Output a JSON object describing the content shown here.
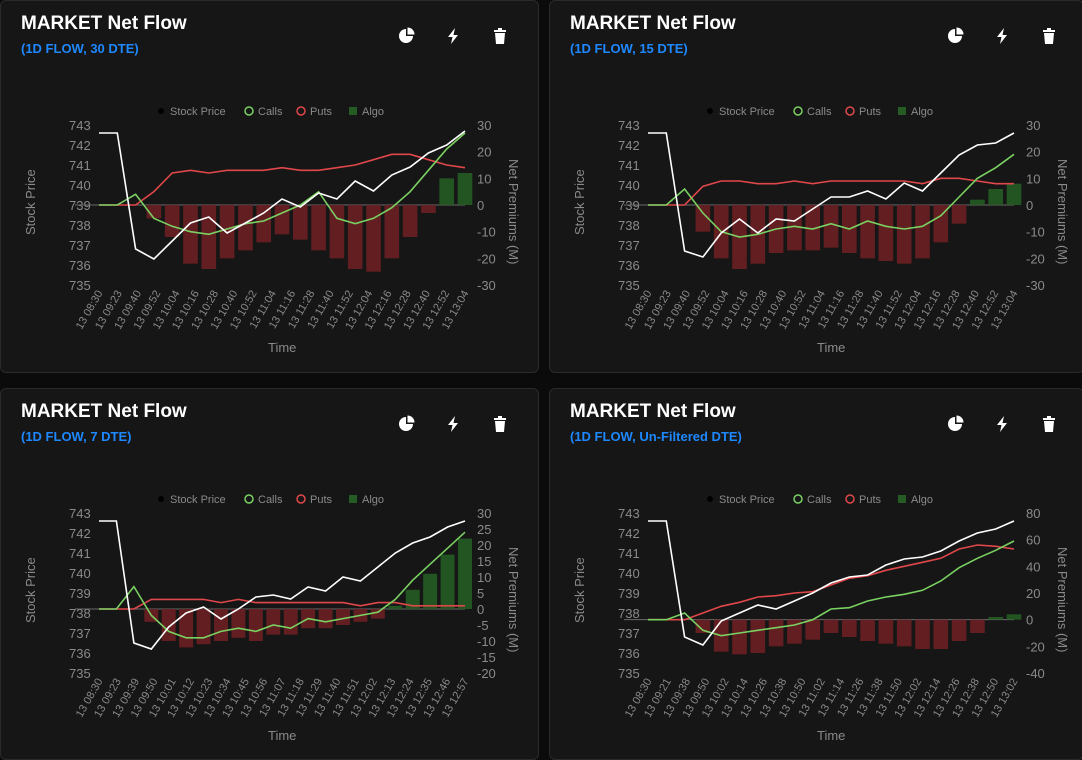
{
  "colors": {
    "accent": "#1e88ff",
    "stock": "#ffffff",
    "calls": "#7ad162",
    "puts": "#e0474a",
    "algo_pos": "#245c24",
    "algo_neg": "#6b1f22",
    "axis_text": "#8a8a8a"
  },
  "icons": [
    "pie-chart-icon",
    "lightning-icon",
    "trash-icon"
  ],
  "legend": [
    "Stock Price",
    "Calls",
    "Puts",
    "Algo"
  ],
  "panels": [
    {
      "title": "MARKET Net Flow",
      "subtitle": "(1D FLOW, 30 DTE)",
      "chart_data": {
        "type": "line",
        "xlabel": "Time",
        "ylabel_left": "Stock Price",
        "ylabel_right": "Net Premiums (M)",
        "ylim_left": [
          735,
          743
        ],
        "ylim_right": [
          -30,
          30
        ],
        "yticks_left": [
          743,
          742,
          741,
          740,
          739,
          738,
          737,
          736,
          735
        ],
        "yticks_right": [
          30,
          20,
          10,
          0,
          -10,
          -20,
          -30
        ],
        "x_ticks": [
          "13 08:30",
          "13 09:23",
          "13 09:40",
          "13 09:52",
          "13 10:04",
          "13 10:16",
          "13 10:28",
          "13 10:40",
          "13 10:52",
          "13 11:04",
          "13 11:16",
          "13 11:28",
          "13 11:40",
          "13 11:52",
          "13 12:04",
          "13 12:16",
          "13 12:28",
          "13 12:40",
          "13 12:52",
          "13 13:04"
        ],
        "legend_position": "top",
        "series": [
          {
            "name": "Stock Price",
            "axis": "left",
            "values": [
              742.6,
              742.6,
              736.8,
              736.3,
              737.2,
              738.1,
              738.4,
              737.6,
              738.1,
              738.6,
              739.3,
              738.9,
              739.6,
              739.3,
              740.2,
              739.7,
              740.5,
              740.9,
              741.6,
              742.0,
              742.7
            ]
          },
          {
            "name": "Calls",
            "axis": "right",
            "values": [
              0,
              0,
              4,
              -5,
              -8,
              -10,
              -11,
              -9,
              -7,
              -6,
              -3,
              0,
              5,
              -5,
              -7,
              -5,
              -1,
              5,
              13,
              21,
              27
            ]
          },
          {
            "name": "Puts",
            "axis": "right",
            "values": [
              0,
              0,
              0,
              5,
              12,
              13,
              12,
              13,
              13,
              13,
              14,
              13,
              13,
              14,
              15,
              17,
              19,
              19,
              17,
              15,
              14
            ]
          },
          {
            "name": "Algo",
            "axis": "right",
            "type": "bar",
            "values": [
              0,
              0,
              0,
              -5,
              -12,
              -22,
              -24,
              -20,
              -17,
              -14,
              -11,
              -13,
              -17,
              -20,
              -24,
              -25,
              -20,
              -12,
              -3,
              10,
              12
            ]
          }
        ]
      }
    },
    {
      "title": "MARKET Net Flow",
      "subtitle": "(1D FLOW, 15 DTE)",
      "chart_data": {
        "type": "line",
        "xlabel": "Time",
        "ylabel_left": "Stock Price",
        "ylabel_right": "Net Premiums (M)",
        "ylim_left": [
          735,
          743
        ],
        "ylim_right": [
          -30,
          30
        ],
        "yticks_left": [
          743,
          742,
          741,
          740,
          739,
          738,
          737,
          736,
          735
        ],
        "yticks_right": [
          30,
          20,
          10,
          0,
          -10,
          -20,
          -30
        ],
        "x_ticks": [
          "13 08:30",
          "13 09:23",
          "13 09:40",
          "13 09:52",
          "13 10:04",
          "13 10:16",
          "13 10:28",
          "13 10:40",
          "13 10:52",
          "13 11:04",
          "13 11:16",
          "13 11:28",
          "13 11:40",
          "13 11:52",
          "13 12:04",
          "13 12:16",
          "13 12:28",
          "13 12:40",
          "13 12:52",
          "13 13:04"
        ],
        "legend_position": "top",
        "series": [
          {
            "name": "Stock Price",
            "axis": "left",
            "values": [
              742.6,
              742.6,
              736.7,
              736.4,
              737.6,
              738.3,
              737.6,
              738.3,
              738.2,
              738.8,
              739.4,
              739.4,
              739.7,
              739.3,
              740.1,
              739.7,
              740.6,
              741.5,
              742.0,
              742.1,
              742.6
            ]
          },
          {
            "name": "Calls",
            "axis": "right",
            "values": [
              0,
              0,
              6,
              -3,
              -10,
              -12,
              -11,
              -9,
              -8,
              -9,
              -7,
              -9,
              -6,
              -8,
              -9,
              -8,
              -4,
              3,
              10,
              14,
              19
            ]
          },
          {
            "name": "Puts",
            "axis": "right",
            "values": [
              0,
              0,
              0,
              7,
              9,
              9,
              8,
              8,
              9,
              8,
              9,
              9,
              9,
              9,
              9,
              8,
              10,
              10,
              9,
              8,
              8
            ]
          },
          {
            "name": "Algo",
            "axis": "right",
            "type": "bar",
            "values": [
              0,
              0,
              0,
              -10,
              -20,
              -24,
              -22,
              -18,
              -17,
              -17,
              -16,
              -18,
              -20,
              -21,
              -22,
              -20,
              -14,
              -7,
              2,
              6,
              8
            ]
          }
        ]
      }
    },
    {
      "title": "MARKET Net Flow",
      "subtitle": "(1D FLOW, 7 DTE)",
      "chart_data": {
        "type": "line",
        "xlabel": "Time",
        "ylabel_left": "Stock Price",
        "ylabel_right": "Net Premiums (M)",
        "ylim_left": [
          735,
          743
        ],
        "ylim_right": [
          -20,
          30
        ],
        "yticks_left": [
          743,
          742,
          741,
          740,
          739,
          738,
          737,
          736,
          735
        ],
        "yticks_right": [
          30,
          25,
          20,
          15,
          10,
          5,
          0,
          -5,
          -10,
          -15,
          -20
        ],
        "x_ticks": [
          "13 08:30",
          "13 09:23",
          "13 09:39",
          "13 09:50",
          "13 10:01",
          "13 10:12",
          "13 10:23",
          "13 10:34",
          "13 10:45",
          "13 10:56",
          "13 11:07",
          "13 11:18",
          "13 11:29",
          "13 11:40",
          "13 11:51",
          "13 12:02",
          "13 12:13",
          "13 12:24",
          "13 12:35",
          "13 12:46",
          "13 12:57"
        ],
        "legend_position": "top",
        "series": [
          {
            "name": "Stock Price",
            "axis": "left",
            "values": [
              742.6,
              742.6,
              736.5,
              736.2,
              737.3,
              738.0,
              738.3,
              737.7,
              738.2,
              738.8,
              738.9,
              738.7,
              739.3,
              739.1,
              739.8,
              739.6,
              740.3,
              741.0,
              741.5,
              741.8,
              742.3,
              742.6
            ]
          },
          {
            "name": "Calls",
            "axis": "right",
            "values": [
              0,
              0,
              7,
              -2,
              -7,
              -9,
              -9,
              -7,
              -6,
              -7,
              -5,
              -6,
              -3,
              -4,
              -3,
              -2,
              -1,
              3,
              9,
              14,
              19,
              24
            ]
          },
          {
            "name": "Puts",
            "axis": "right",
            "values": [
              0,
              0,
              0,
              3,
              3,
              3,
              3,
              2,
              3,
              2,
              2,
              2,
              2,
              2,
              2,
              1,
              2,
              2,
              1,
              1,
              1,
              1
            ]
          },
          {
            "name": "Algo",
            "axis": "right",
            "type": "bar",
            "values": [
              0,
              0,
              0,
              -4,
              -10,
              -12,
              -11,
              -10,
              -9,
              -10,
              -8,
              -8,
              -6,
              -6,
              -5,
              -4,
              -3,
              1,
              6,
              11,
              17,
              22
            ]
          }
        ]
      }
    },
    {
      "title": "MARKET Net Flow",
      "subtitle": "(1D FLOW, Un-Filtered DTE)",
      "chart_data": {
        "type": "line",
        "xlabel": "Time",
        "ylabel_left": "Stock Price",
        "ylabel_right": "Net Premiums (M)",
        "ylim_left": [
          735,
          743
        ],
        "ylim_right": [
          -40,
          80
        ],
        "yticks_left": [
          743,
          742,
          741,
          740,
          739,
          738,
          737,
          736,
          735
        ],
        "yticks_right": [
          80,
          60,
          40,
          20,
          0,
          -20,
          -40
        ],
        "x_ticks": [
          "13 08:30",
          "13 09:21",
          "13 09:38",
          "13 09:50",
          "13 10:02",
          "13 10:14",
          "13 10:26",
          "13 10:38",
          "13 10:50",
          "13 11:02",
          "13 11:14",
          "13 11:26",
          "13 11:38",
          "13 11:50",
          "13 12:02",
          "13 12:14",
          "13 12:26",
          "13 12:38",
          "13 12:50",
          "13 13:02"
        ],
        "legend_position": "top",
        "series": [
          {
            "name": "Stock Price",
            "axis": "left",
            "values": [
              742.6,
              742.6,
              736.8,
              736.4,
              737.6,
              738.0,
              738.4,
              738.2,
              738.6,
              739.0,
              739.5,
              739.8,
              739.9,
              740.4,
              740.7,
              740.8,
              741.1,
              741.6,
              742.0,
              742.2,
              742.6
            ]
          },
          {
            "name": "Calls",
            "axis": "right",
            "values": [
              0,
              0,
              5,
              -8,
              -12,
              -10,
              -8,
              -6,
              -4,
              0,
              8,
              9,
              14,
              17,
              19,
              22,
              29,
              39,
              46,
              52,
              59
            ]
          },
          {
            "name": "Puts",
            "axis": "right",
            "values": [
              0,
              0,
              0,
              5,
              10,
              13,
              17,
              18,
              20,
              21,
              26,
              31,
              33,
              37,
              40,
              43,
              46,
              53,
              56,
              55,
              53
            ]
          },
          {
            "name": "Algo",
            "axis": "right",
            "type": "bar",
            "values": [
              0,
              0,
              0,
              -10,
              -24,
              -26,
              -25,
              -20,
              -18,
              -15,
              -10,
              -13,
              -16,
              -18,
              -20,
              -22,
              -22,
              -16,
              -10,
              2,
              4
            ]
          }
        ]
      }
    }
  ]
}
